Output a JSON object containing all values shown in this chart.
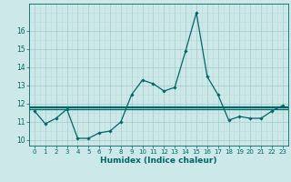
{
  "xlabel": "Humidex (Indice chaleur)",
  "x": [
    0,
    1,
    2,
    3,
    4,
    5,
    6,
    7,
    8,
    9,
    10,
    11,
    12,
    13,
    14,
    15,
    16,
    17,
    18,
    19,
    20,
    21,
    22,
    23
  ],
  "y_main": [
    11.6,
    10.9,
    11.2,
    11.7,
    10.1,
    10.1,
    10.4,
    10.5,
    11.0,
    12.5,
    13.3,
    13.1,
    12.7,
    12.9,
    14.9,
    17.0,
    13.5,
    12.5,
    11.1,
    11.3,
    11.2,
    11.2,
    11.6,
    11.9
  ],
  "y_ref1": 11.85,
  "y_ref2": 11.78,
  "y_ref3": 11.72,
  "line_color": "#006666",
  "bg_color": "#cce8e8",
  "grid_major_color": "#aacece",
  "grid_minor_color": "#bcdada",
  "ylim": [
    9.7,
    17.5
  ],
  "yticks": [
    10,
    11,
    12,
    13,
    14,
    15,
    16
  ],
  "xticks": [
    0,
    1,
    2,
    3,
    4,
    5,
    6,
    7,
    8,
    9,
    10,
    11,
    12,
    13,
    14,
    15,
    16,
    17,
    18,
    19,
    20,
    21,
    22,
    23
  ],
  "tick_fontsize": 5.0,
  "xlabel_fontsize": 6.5
}
